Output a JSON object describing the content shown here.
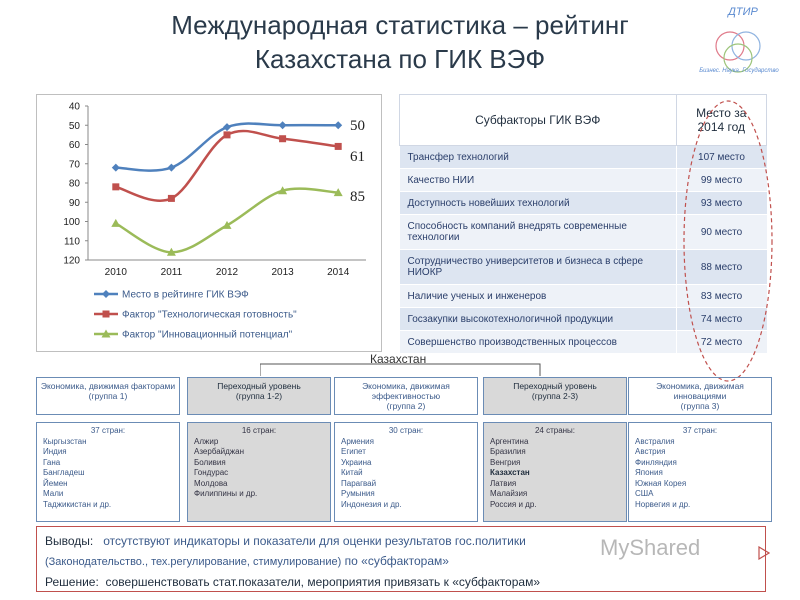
{
  "slide": {
    "title_line1": "Международная статистика – рейтинг",
    "title_line2": "Казахстана по ГИК ВЭФ"
  },
  "logo": {
    "name": "ДТИР",
    "tagline": "Бизнес. Наука. Государство",
    "colors": [
      "#e07a8a",
      "#8fb3e0",
      "#9cc47a"
    ]
  },
  "chart_data": {
    "type": "line",
    "x": [
      "2010",
      "2011",
      "2012",
      "2013",
      "2014"
    ],
    "ylim": [
      40,
      120
    ],
    "y_inverted": true,
    "yticks": [
      "40",
      "50",
      "60",
      "70",
      "80",
      "90",
      "100",
      "110",
      "120"
    ],
    "series": [
      {
        "name": "Место в рейтинге ГИК ВЭФ",
        "values": [
          72,
          72,
          51,
          50,
          50
        ],
        "color": "#4f81bd"
      },
      {
        "name": "Фактор \"Технологическая готовность\"",
        "values": [
          82,
          88,
          55,
          57,
          61
        ],
        "color": "#c0504d"
      },
      {
        "name": "Фактор \"Инновационный потенциал\"",
        "values": [
          101,
          116,
          102,
          84,
          85
        ],
        "color": "#9bbb59"
      }
    ],
    "annotations": [
      "50",
      "61",
      "85"
    ],
    "legend_position": "bottom"
  },
  "subfactors": {
    "header_name": "Субфакторы ГИК ВЭФ",
    "header_place": "Место за 2014 год",
    "rows": [
      {
        "name": "Трансфер технологий",
        "place": "107 место"
      },
      {
        "name": "Качество НИИ",
        "place": "99 место"
      },
      {
        "name": "Доступность новейших технологий",
        "place": "93 место"
      },
      {
        "name": "Способность компаний внедрять современные технологии",
        "place": "90 место"
      },
      {
        "name": "Сотрудничество университетов и бизнеса в сфере НИОКР",
        "place": "88 место"
      },
      {
        "name": "Наличие ученых и инженеров",
        "place": "83 место"
      },
      {
        "name": "Госзакупки высокотехнологичной продукции",
        "place": "74 место"
      },
      {
        "name": "Совершенство производственных процессов",
        "place": "72 место"
      }
    ]
  },
  "stages": {
    "kz_label": "Казахстан",
    "groups": [
      {
        "title": "Экономика, движимая факторами",
        "sub": "(группа 1)",
        "count": "37 стран:",
        "countries": [
          "Кыргызстан",
          "Индия",
          "Гана",
          "Бангладеш",
          "Йемен",
          "Мали",
          "Таджикистан и др."
        ],
        "grey": false
      },
      {
        "title": "Переходный уровень",
        "sub": "(группа 1-2)",
        "count": "16 стран:",
        "countries": [
          "Алжир",
          "Азербайджан",
          "Боливия",
          "Гондурас",
          "Молдова",
          "Филиппины и др."
        ],
        "grey": true
      },
      {
        "title": "Экономика, движимая эффективностью",
        "sub": "(группа 2)",
        "count": "30 стран:",
        "countries": [
          "Армения",
          "Египет",
          "Украина",
          "Китай",
          "Парагвай",
          "Румыния",
          "Индонезия и др."
        ],
        "grey": false
      },
      {
        "title": "Переходный уровень",
        "sub": "(группа 2-3)",
        "count": "24 страны:",
        "countries": [
          "Аргентина",
          "Бразилия",
          "Венгрия",
          "Казахстан",
          "Латвия",
          "Малайзия",
          "Россия и др."
        ],
        "grey": true
      },
      {
        "title": "Экономика, движимая инновациями",
        "sub": "(группа 3)",
        "count": "37 стран:",
        "countries": [
          "Австралия",
          "Австрия",
          "Финляндия",
          "Япония",
          "Южная Корея",
          "США",
          "Норвегия и др."
        ],
        "grey": false
      }
    ]
  },
  "conclusions": {
    "label": "Выводы:",
    "line1": "отсутствуют индикаторы и показатели для оценки результатов гос.политики",
    "line2": "(Законодательство., тех.регулирование, стимулирование)",
    "line2_tail": "по «субфакторам»",
    "solution_label": "Решение:",
    "solution": "совершенствовать стат.показатели, мероприятия привязать к «субфакторам»"
  },
  "watermark": "MyShared"
}
